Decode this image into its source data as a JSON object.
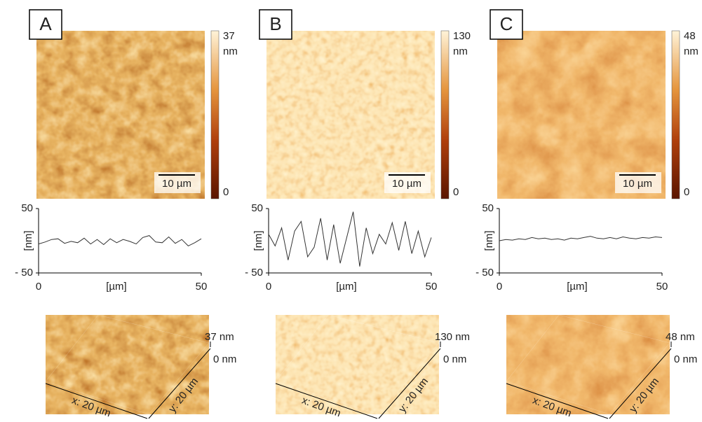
{
  "panels": [
    {
      "label": "A",
      "colorbar_max": "37",
      "colorbar_unit": "nm",
      "colorbar_min": "0",
      "scalebar": "10 µm",
      "z_max": "37 nm",
      "z_min": "0 nm",
      "x_size": "x: 20 µm",
      "y_size": "y: 20 µm"
    },
    {
      "label": "B",
      "colorbar_max": "130",
      "colorbar_unit": "nm",
      "colorbar_min": "0",
      "scalebar": "10 µm",
      "z_max": "130 nm",
      "z_min": "0 nm",
      "x_size": "x: 20 µm",
      "y_size": "y: 20 µm"
    },
    {
      "label": "C",
      "colorbar_max": "48",
      "colorbar_unit": "nm",
      "colorbar_min": "0",
      "scalebar": "10 µm",
      "z_max": "48 nm",
      "z_min": "0 nm",
      "x_size": "x: 20 µm",
      "y_size": "y: 20 µm"
    }
  ],
  "chart_data": [
    {
      "type": "line",
      "xlabel": "[µm]",
      "ylabel": "[nm]",
      "color": "#333333",
      "x": [
        0,
        2,
        4,
        6,
        8,
        10,
        12,
        14,
        16,
        18,
        20,
        22,
        24,
        26,
        28,
        30,
        32,
        34,
        36,
        38,
        40,
        42,
        44,
        46,
        48,
        50
      ],
      "values": [
        -5,
        -2,
        2,
        3,
        -4,
        -1,
        -3,
        4,
        -5,
        2,
        -6,
        3,
        -3,
        2,
        -1,
        -5,
        5,
        8,
        -2,
        -3,
        6,
        -4,
        2,
        -8,
        -3,
        3
      ],
      "xlim": [
        0,
        50
      ],
      "xticks": [
        0,
        50
      ],
      "ylim": [
        -50,
        50
      ],
      "yticks": [
        {
          "value": -50,
          "label": "- 50"
        },
        50
      ]
    },
    {
      "type": "line",
      "xlabel": "[µm]",
      "ylabel": "[nm]",
      "color": "#333333",
      "x": [
        0,
        2,
        4,
        6,
        8,
        10,
        12,
        14,
        16,
        18,
        20,
        22,
        24,
        26,
        28,
        30,
        32,
        34,
        36,
        38,
        40,
        42,
        44,
        46,
        48,
        50
      ],
      "values": [
        10,
        -8,
        20,
        -30,
        15,
        30,
        -25,
        -10,
        35,
        -30,
        25,
        -35,
        5,
        45,
        -40,
        20,
        -20,
        10,
        -5,
        28,
        -15,
        30,
        -20,
        15,
        -25,
        5
      ],
      "xlim": [
        0,
        50
      ],
      "xticks": [
        0,
        50
      ],
      "ylim": [
        -50,
        50
      ],
      "yticks": [
        {
          "value": -50,
          "label": "- 50"
        },
        50
      ]
    },
    {
      "type": "line",
      "xlabel": "[µm]",
      "ylabel": "[nm]",
      "color": "#333333",
      "x": [
        0,
        2,
        4,
        6,
        8,
        10,
        12,
        14,
        16,
        18,
        20,
        22,
        24,
        26,
        28,
        30,
        32,
        34,
        36,
        38,
        40,
        42,
        44,
        46,
        48,
        50
      ],
      "values": [
        0,
        2,
        1,
        3,
        2,
        5,
        3,
        4,
        2,
        3,
        1,
        4,
        3,
        5,
        7,
        4,
        3,
        5,
        3,
        6,
        4,
        3,
        5,
        4,
        6,
        5
      ],
      "xlim": [
        0,
        50
      ],
      "xticks": [
        0,
        50
      ],
      "ylim": [
        -50,
        50
      ],
      "yticks": [
        {
          "value": -50,
          "label": "- 50"
        },
        50
      ]
    }
  ]
}
